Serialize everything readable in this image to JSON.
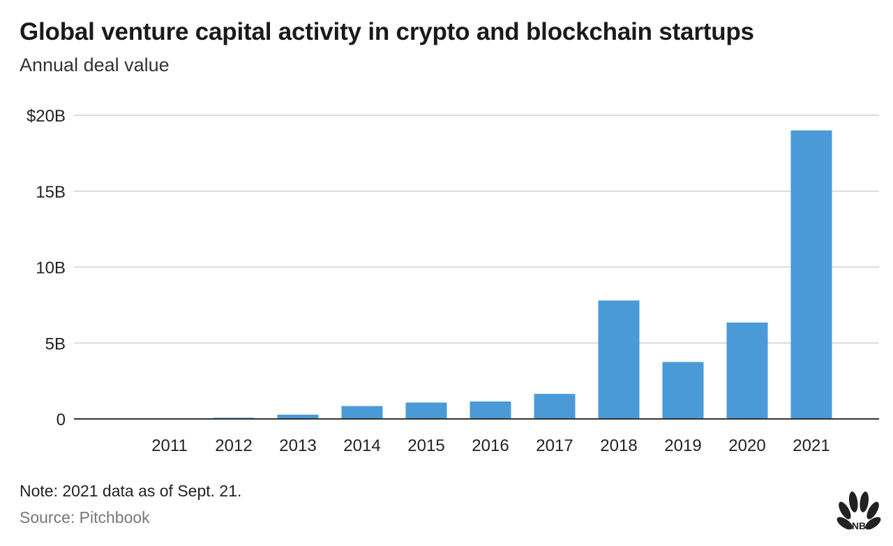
{
  "header": {
    "title": "Global venture capital activity in crypto and blockchain startups",
    "subtitle": "Annual deal value"
  },
  "footer": {
    "note": "Note: 2021 data as of Sept. 21.",
    "source": "Source: Pitchbook",
    "logo_text": "CNBC"
  },
  "colors": {
    "bar": "#4a9ad8",
    "grid": "#d0d0d0",
    "axis": "#333333",
    "text": "#222222",
    "logo_peacock": [
      "#222222"
    ]
  },
  "chart_data": {
    "type": "bar",
    "title": "Global venture capital activity in crypto and blockchain startups",
    "subtitle": "Annual deal value",
    "categories": [
      "2011",
      "2012",
      "2013",
      "2014",
      "2015",
      "2016",
      "2017",
      "2018",
      "2019",
      "2020",
      "2021"
    ],
    "values": [
      0.02,
      0.08,
      0.28,
      0.85,
      1.08,
      1.15,
      1.65,
      7.8,
      3.75,
      6.35,
      19.0
    ],
    "units": "billion USD",
    "ylim": [
      0,
      20
    ],
    "yticks": [
      0,
      5,
      10,
      15,
      20
    ],
    "ytick_labels": [
      "0",
      "5B",
      "10B",
      "15B",
      "$20B"
    ],
    "xlabel": "",
    "ylabel": "",
    "grid": true,
    "legend": "none"
  }
}
